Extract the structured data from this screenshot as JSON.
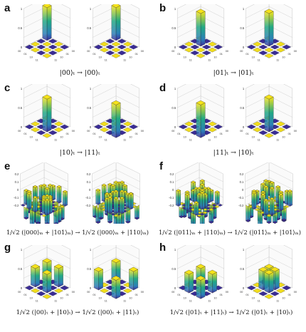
{
  "panels": [
    {
      "letter": "a",
      "caption": "|00⟩ₜ → |00⟩ₜ"
    },
    {
      "letter": "b",
      "caption": "|01⟩ₜ → |01⟩ₜ"
    },
    {
      "letter": "c",
      "caption": "|10⟩ₜ → |11⟩ₜ"
    },
    {
      "letter": "d",
      "caption": "|11⟩ₜ → |10⟩ₜ"
    },
    {
      "letter": "e",
      "caption": "1/√2 (|000⟩ₘ + |101⟩ₘ) → 1/√2 (|000⟩ₘ + |110⟩ₘ)"
    },
    {
      "letter": "f",
      "caption": "1/√2 (|011⟩ₘ + |110⟩ₘ) → 1/√2 (|011⟩ₘ + |101⟩ₘ)"
    },
    {
      "letter": "g",
      "caption": "1/√2 (|00⟩ₜ + |10⟩ₜ) → 1/√2 (|00⟩ₜ + |11⟩ₜ)"
    },
    {
      "letter": "h",
      "caption": "1/√2 (|01⟩ₜ + |11⟩ₜ) → 1/√2 (|01⟩ₜ + |10⟩ₜ)"
    }
  ],
  "axis_ticks": {
    "z_top": "1",
    "z_mid": "0.5",
    "z_zero": "0",
    "e_z": [
      "0.2",
      "0.1",
      "0",
      "-0.1",
      "-0.2"
    ],
    "basis_2q": [
      "00",
      "01",
      "10",
      "11"
    ]
  },
  "colors": {
    "bar_top": "#f5e21a",
    "bar_mid": "#22a884",
    "bar_low": "#2c7fb8",
    "bar_base": "#3b2a98",
    "floor_yellow": "#f2de1c",
    "floor_blue": "#3a2c96",
    "grid": "#c8c8c8"
  }
}
